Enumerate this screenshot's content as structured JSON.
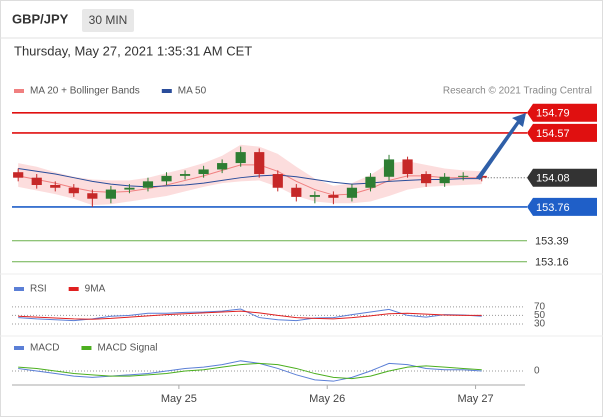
{
  "header": {
    "symbol": "GBP/JPY",
    "interval": "30 MIN",
    "timestamp": "Thursday, May 27, 2021 1:35:31 AM CET"
  },
  "chart_data": [
    {
      "type": "candlestick",
      "source": "Research © 2021 Trading Central",
      "xlim": [
        -3,
        80
      ],
      "ylim": [
        153.07,
        154.93
      ],
      "up_color": "#2e7d32",
      "down_color": "#c62828",
      "x": [
        -2,
        1,
        4,
        7,
        10,
        13,
        16,
        19,
        22,
        25,
        28,
        31,
        34,
        37,
        40,
        43,
        46,
        49,
        52,
        55,
        58,
        61,
        64,
        67,
        70,
        73
      ],
      "open": [
        154.14,
        154.08,
        154.0,
        153.97,
        153.91,
        153.85,
        153.95,
        153.97,
        154.04,
        154.1,
        154.12,
        154.17,
        154.24,
        154.36,
        154.12,
        153.97,
        153.87,
        153.89,
        153.86,
        153.97,
        154.09,
        154.28,
        154.12,
        154.02,
        154.09,
        154.1
      ],
      "high": [
        154.18,
        154.12,
        154.04,
        154.01,
        153.95,
        153.99,
        154.01,
        154.08,
        154.14,
        154.16,
        154.21,
        154.28,
        154.42,
        154.4,
        154.16,
        154.01,
        153.93,
        153.93,
        154.01,
        154.13,
        154.33,
        154.31,
        154.15,
        154.13,
        154.14,
        154.14
      ],
      "low": [
        154.04,
        153.96,
        153.93,
        153.87,
        153.76,
        153.8,
        153.91,
        153.93,
        154.0,
        154.06,
        154.08,
        154.13,
        154.2,
        154.08,
        153.93,
        153.82,
        153.8,
        153.79,
        153.82,
        153.93,
        154.05,
        154.08,
        153.98,
        153.98,
        154.05,
        154.04
      ],
      "close": [
        154.08,
        154.0,
        153.97,
        153.91,
        153.85,
        153.95,
        153.97,
        154.04,
        154.1,
        154.12,
        154.17,
        154.24,
        154.36,
        154.12,
        153.97,
        153.87,
        153.89,
        153.86,
        153.97,
        154.09,
        154.28,
        154.12,
        154.02,
        154.09,
        154.1,
        154.08
      ],
      "series": [
        {
          "name": "MA 20 + Bollinger Bands",
          "color": "#f08080",
          "band_color": "#fbd5d5",
          "values": [
            154.1,
            154.06,
            154.02,
            153.97,
            153.93,
            153.92,
            153.93,
            153.96,
            154.0,
            154.05,
            154.1,
            154.16,
            154.22,
            154.22,
            154.15,
            154.04,
            153.95,
            153.89,
            153.9,
            153.96,
            154.05,
            154.1,
            154.1,
            154.08,
            154.08,
            154.08
          ],
          "upper": [
            154.24,
            154.2,
            154.14,
            154.09,
            154.06,
            154.05,
            154.05,
            154.08,
            154.13,
            154.18,
            154.24,
            154.32,
            154.44,
            154.42,
            154.34,
            154.2,
            154.07,
            153.99,
            154.02,
            154.11,
            154.24,
            154.26,
            154.22,
            154.18,
            154.16,
            154.15
          ],
          "lower": [
            153.98,
            153.94,
            153.9,
            153.85,
            153.78,
            153.79,
            153.82,
            153.85,
            153.88,
            153.93,
            153.98,
            154.02,
            154.04,
            154.05,
            153.98,
            153.88,
            153.82,
            153.8,
            153.8,
            153.82,
            153.88,
            153.95,
            153.98,
            153.99,
            154.0,
            154.01
          ]
        },
        {
          "name": "MA 50",
          "color": "#2a4d9b",
          "values": [
            154.18,
            154.15,
            154.12,
            154.08,
            154.04,
            154.01,
            153.99,
            153.98,
            153.99,
            154.0,
            154.02,
            154.05,
            154.08,
            154.1,
            154.11,
            154.09,
            154.06,
            154.03,
            154.01,
            154.02,
            154.04,
            154.05,
            154.06,
            154.06,
            154.07,
            154.07
          ]
        }
      ],
      "levels": [
        {
          "value": 154.79,
          "color": "#e01010",
          "boxed": true
        },
        {
          "value": 154.57,
          "color": "#e01010",
          "boxed": true
        },
        {
          "value": 153.76,
          "color": "#1f5fc8",
          "boxed": true
        },
        {
          "value": 153.39,
          "color": "#6ab04c",
          "boxed": false
        },
        {
          "value": 153.16,
          "color": "#6ab04c",
          "boxed": false
        }
      ],
      "last": {
        "value": 154.08,
        "color": "#333333"
      }
    },
    {
      "type": "line",
      "xlim": [
        -3,
        80
      ],
      "ylim": [
        16,
        86
      ],
      "yticks": [
        70,
        50,
        30
      ],
      "x": [
        -2,
        1,
        4,
        7,
        10,
        13,
        16,
        19,
        22,
        25,
        28,
        31,
        34,
        37,
        40,
        43,
        46,
        49,
        52,
        55,
        58,
        61,
        64,
        67,
        70,
        73
      ],
      "series": [
        {
          "name": "RSI",
          "color": "#5b7fd6",
          "values": [
            45,
            42,
            40,
            38,
            42,
            48,
            50,
            55,
            55,
            57,
            58,
            60,
            65,
            45,
            40,
            38,
            44,
            45,
            52,
            58,
            64,
            50,
            46,
            52,
            51,
            48
          ]
        },
        {
          "name": "9MA",
          "color": "#e02020",
          "values": [
            48,
            46,
            44,
            42,
            41,
            43,
            46,
            49,
            52,
            54,
            56,
            58,
            60,
            56,
            50,
            45,
            43,
            42,
            45,
            49,
            54,
            55,
            53,
            51,
            50,
            50
          ]
        }
      ]
    },
    {
      "type": "line",
      "xlim": [
        -3,
        80
      ],
      "ylim": [
        -0.11,
        0.11
      ],
      "yticks": [
        0
      ],
      "xticks": [
        {
          "value": 24,
          "label": "May 25"
        },
        {
          "value": 48,
          "label": "May 26"
        },
        {
          "value": 72,
          "label": "May 27"
        }
      ],
      "x": [
        -2,
        1,
        4,
        7,
        10,
        13,
        16,
        19,
        22,
        25,
        28,
        31,
        34,
        37,
        40,
        43,
        46,
        49,
        52,
        55,
        58,
        61,
        64,
        67,
        70,
        73
      ],
      "series": [
        {
          "name": "MACD",
          "color": "#5b7fd6",
          "values": [
            0.02,
            0.0,
            -0.02,
            -0.04,
            -0.05,
            -0.04,
            -0.03,
            -0.02,
            0.0,
            0.02,
            0.03,
            0.05,
            0.08,
            0.06,
            0.02,
            -0.03,
            -0.07,
            -0.08,
            -0.05,
            0.0,
            0.06,
            0.05,
            0.02,
            0.01,
            0.01,
            0.0
          ]
        },
        {
          "name": "MACD Signal",
          "color": "#4caf1f",
          "values": [
            0.03,
            0.02,
            0.0,
            -0.02,
            -0.03,
            -0.04,
            -0.04,
            -0.03,
            -0.02,
            0.0,
            0.01,
            0.03,
            0.05,
            0.06,
            0.05,
            0.02,
            -0.02,
            -0.05,
            -0.06,
            -0.04,
            0.0,
            0.03,
            0.04,
            0.03,
            0.02,
            0.01
          ]
        }
      ]
    }
  ]
}
